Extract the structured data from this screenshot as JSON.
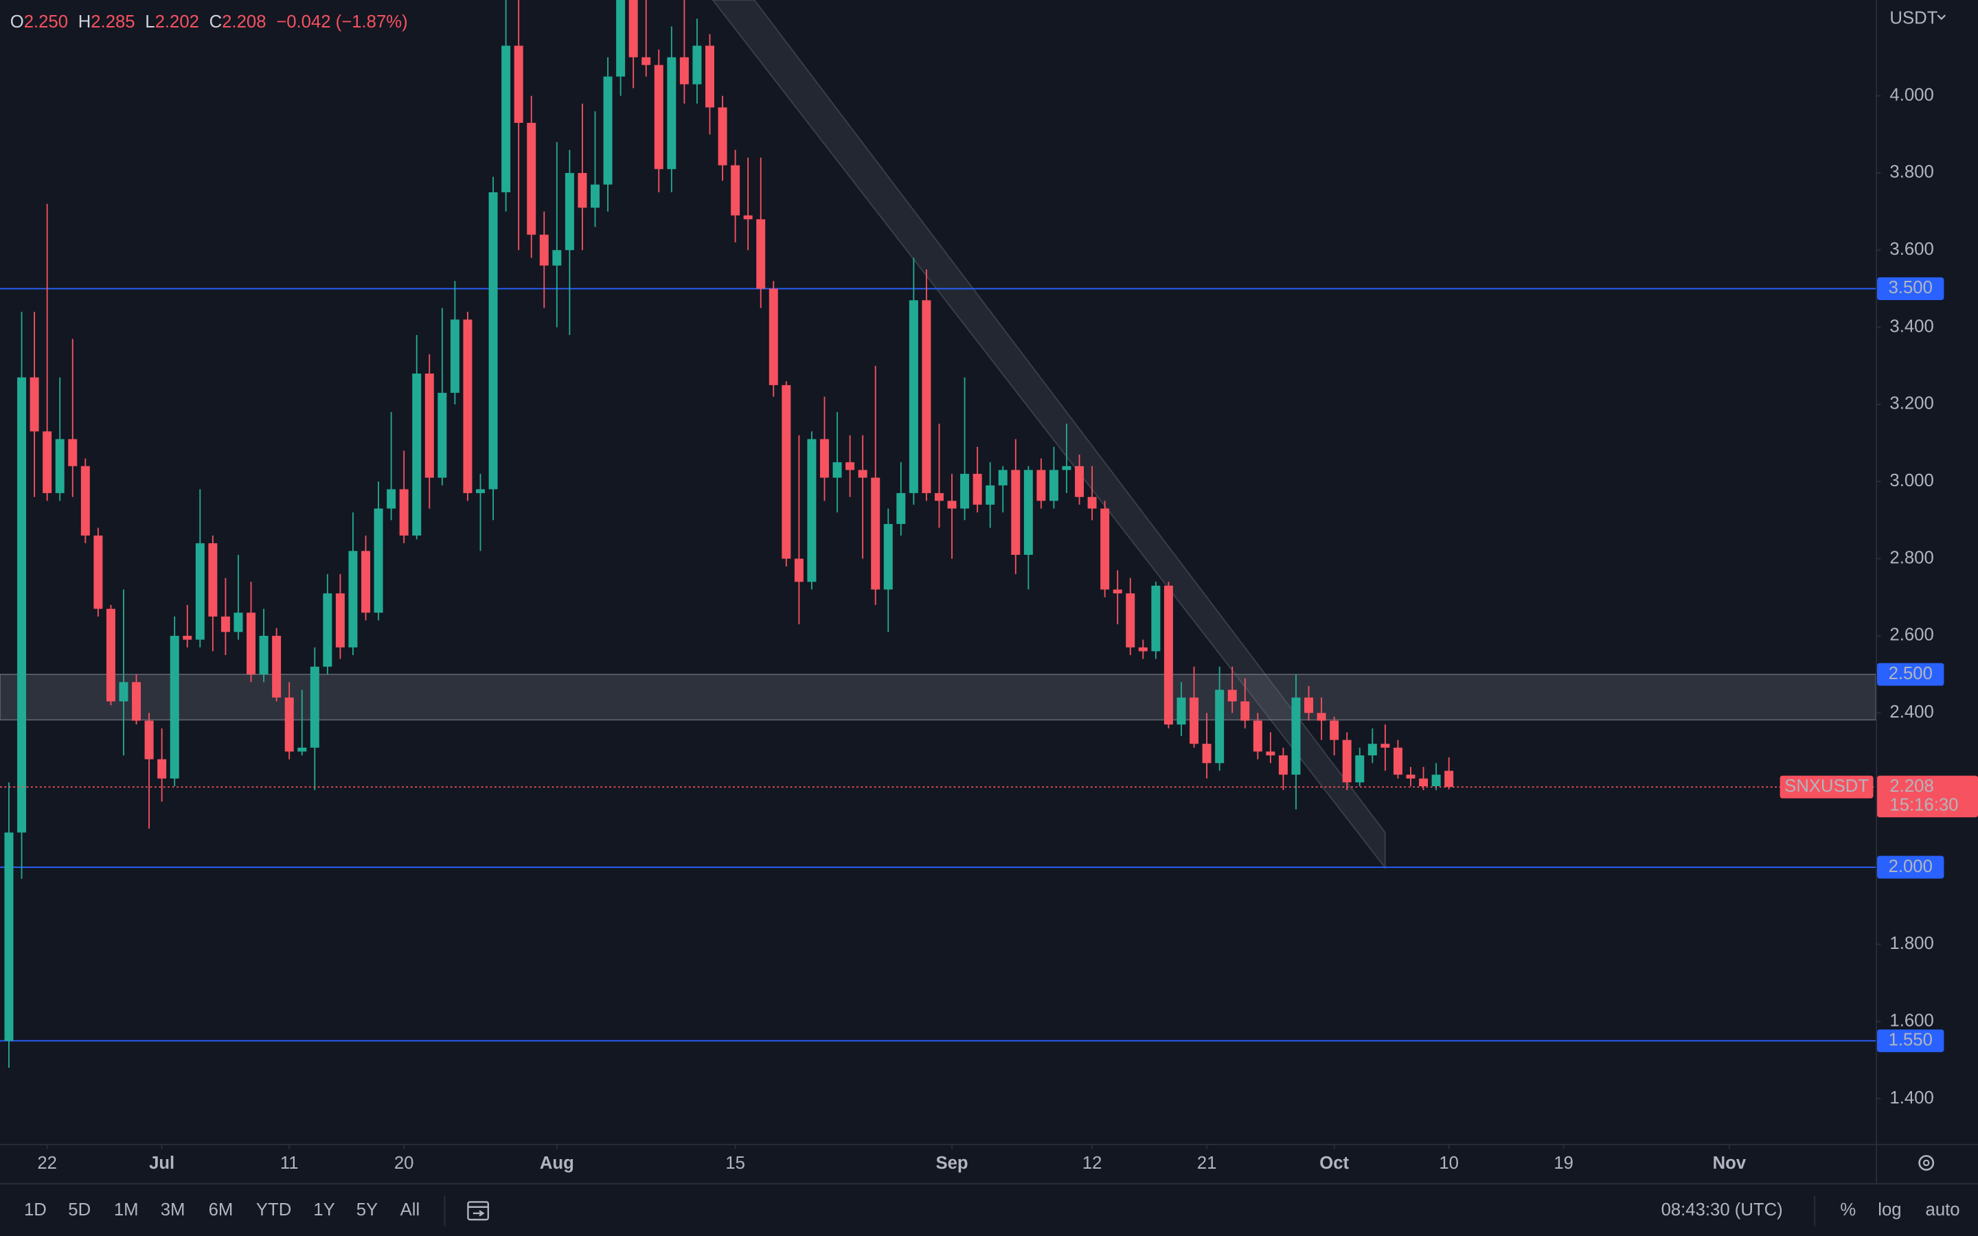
{
  "chart_data": {
    "type": "candlestick",
    "symbol": "SNXUSDT",
    "currency": "USDT",
    "up_color": "#22ab94",
    "down_color": "#f7525f",
    "level_color": "#2962ff",
    "legend": {
      "items": [
        {
          "key": "O",
          "value": "2.250"
        },
        {
          "key": "H",
          "value": "2.285"
        },
        {
          "key": "L",
          "value": "2.202"
        },
        {
          "key": "C",
          "value": "2.208"
        }
      ],
      "change": "−0.042 (−1.87%)"
    },
    "x": [
      0,
      1,
      2,
      3,
      4,
      5,
      6,
      7,
      8,
      9,
      10,
      11,
      12,
      13,
      14,
      15,
      16,
      17,
      18,
      19,
      20,
      21,
      22,
      23,
      24,
      25,
      26,
      27,
      28,
      29,
      30,
      31,
      32,
      33,
      34,
      35,
      36,
      37,
      38,
      39,
      40,
      41,
      42,
      43,
      44,
      45,
      46,
      47,
      48,
      49,
      50,
      51,
      52,
      53,
      54,
      55,
      56,
      57,
      58,
      59,
      60,
      61,
      62,
      63,
      64,
      65,
      66,
      67,
      68,
      69,
      70,
      71,
      72,
      73,
      74,
      75,
      76,
      77,
      78,
      79,
      80,
      81,
      82,
      83,
      84,
      85,
      86,
      87,
      88,
      89,
      90,
      91,
      92,
      93,
      94,
      95,
      96,
      97,
      98,
      99,
      100,
      101,
      102,
      103,
      104,
      105,
      106,
      107,
      108,
      109,
      110,
      111,
      112,
      113
    ],
    "ohlc": [
      [
        1.55,
        2.22,
        1.48,
        2.09
      ],
      [
        2.09,
        3.44,
        1.97,
        3.27
      ],
      [
        3.27,
        3.44,
        2.96,
        3.13
      ],
      [
        3.13,
        3.72,
        2.95,
        2.97
      ],
      [
        2.97,
        3.27,
        2.95,
        3.11
      ],
      [
        3.11,
        3.37,
        2.96,
        3.04
      ],
      [
        3.04,
        3.06,
        2.84,
        2.86
      ],
      [
        2.86,
        2.88,
        2.65,
        2.67
      ],
      [
        2.67,
        2.68,
        2.42,
        2.43
      ],
      [
        2.43,
        2.72,
        2.29,
        2.48
      ],
      [
        2.48,
        2.5,
        2.37,
        2.38
      ],
      [
        2.38,
        2.4,
        2.1,
        2.28
      ],
      [
        2.28,
        2.36,
        2.17,
        2.23
      ],
      [
        2.23,
        2.65,
        2.21,
        2.6
      ],
      [
        2.6,
        2.68,
        2.57,
        2.59
      ],
      [
        2.59,
        2.98,
        2.57,
        2.84
      ],
      [
        2.84,
        2.86,
        2.56,
        2.65
      ],
      [
        2.65,
        2.75,
        2.55,
        2.61
      ],
      [
        2.61,
        2.81,
        2.59,
        2.66
      ],
      [
        2.66,
        2.74,
        2.48,
        2.5
      ],
      [
        2.5,
        2.67,
        2.48,
        2.6
      ],
      [
        2.6,
        2.62,
        2.43,
        2.44
      ],
      [
        2.44,
        2.48,
        2.28,
        2.3
      ],
      [
        2.3,
        2.46,
        2.29,
        2.31
      ],
      [
        2.31,
        2.57,
        2.2,
        2.52
      ],
      [
        2.52,
        2.76,
        2.5,
        2.71
      ],
      [
        2.71,
        2.76,
        2.54,
        2.57
      ],
      [
        2.57,
        2.92,
        2.55,
        2.82
      ],
      [
        2.82,
        2.86,
        2.64,
        2.66
      ],
      [
        2.66,
        3.0,
        2.64,
        2.93
      ],
      [
        2.93,
        3.18,
        2.9,
        2.98
      ],
      [
        2.98,
        3.08,
        2.84,
        2.86
      ],
      [
        2.86,
        3.38,
        2.85,
        3.28
      ],
      [
        3.28,
        3.33,
        2.93,
        3.01
      ],
      [
        3.01,
        3.45,
        2.99,
        3.23
      ],
      [
        3.23,
        3.52,
        3.2,
        3.42
      ],
      [
        3.42,
        3.44,
        2.95,
        2.97
      ],
      [
        2.97,
        3.02,
        2.82,
        2.98
      ],
      [
        2.98,
        3.79,
        2.9,
        3.75
      ],
      [
        3.75,
        4.28,
        3.7,
        4.13
      ],
      [
        4.13,
        4.28,
        3.6,
        3.93
      ],
      [
        3.93,
        4.0,
        3.58,
        3.64
      ],
      [
        3.64,
        3.7,
        3.45,
        3.56
      ],
      [
        3.56,
        3.88,
        3.4,
        3.6
      ],
      [
        3.6,
        3.86,
        3.38,
        3.8
      ],
      [
        3.8,
        3.98,
        3.6,
        3.71
      ],
      [
        3.71,
        3.96,
        3.66,
        3.77
      ],
      [
        3.77,
        4.1,
        3.7,
        4.05
      ],
      [
        4.05,
        4.32,
        4.0,
        4.25
      ],
      [
        4.25,
        4.3,
        4.02,
        4.1
      ],
      [
        4.1,
        4.25,
        4.05,
        4.08
      ],
      [
        4.08,
        4.12,
        3.75,
        3.81
      ],
      [
        3.81,
        4.18,
        3.75,
        4.1
      ],
      [
        4.1,
        4.28,
        3.98,
        4.03
      ],
      [
        4.03,
        4.2,
        3.98,
        4.13
      ],
      [
        4.13,
        4.16,
        3.9,
        3.97
      ],
      [
        3.97,
        4.0,
        3.78,
        3.82
      ],
      [
        3.82,
        3.86,
        3.62,
        3.69
      ],
      [
        3.69,
        3.84,
        3.6,
        3.68
      ],
      [
        3.68,
        3.84,
        3.45,
        3.5
      ],
      [
        3.5,
        3.52,
        3.22,
        3.25
      ],
      [
        3.25,
        3.26,
        2.78,
        2.8
      ],
      [
        2.8,
        3.12,
        2.63,
        2.74
      ],
      [
        2.74,
        3.13,
        2.72,
        3.11
      ],
      [
        3.11,
        3.22,
        2.95,
        3.01
      ],
      [
        3.01,
        3.18,
        2.92,
        3.05
      ],
      [
        3.05,
        3.12,
        2.96,
        3.03
      ],
      [
        3.03,
        3.12,
        2.8,
        3.01
      ],
      [
        3.01,
        3.3,
        2.68,
        2.72
      ],
      [
        2.72,
        2.93,
        2.61,
        2.89
      ],
      [
        2.89,
        3.05,
        2.86,
        2.97
      ],
      [
        2.97,
        3.58,
        2.94,
        3.47
      ],
      [
        3.47,
        3.55,
        2.95,
        2.97
      ],
      [
        2.97,
        3.15,
        2.88,
        2.95
      ],
      [
        2.95,
        3.02,
        2.8,
        2.93
      ],
      [
        2.93,
        3.27,
        2.9,
        3.02
      ],
      [
        3.02,
        3.09,
        2.92,
        2.94
      ],
      [
        2.94,
        3.05,
        2.88,
        2.99
      ],
      [
        2.99,
        3.04,
        2.92,
        3.03
      ],
      [
        3.03,
        3.11,
        2.76,
        2.81
      ],
      [
        2.81,
        3.04,
        2.72,
        3.03
      ],
      [
        3.03,
        3.06,
        2.93,
        2.95
      ],
      [
        2.95,
        3.09,
        2.93,
        3.03
      ],
      [
        3.03,
        3.15,
        2.97,
        3.04
      ],
      [
        3.04,
        3.07,
        2.94,
        2.96
      ],
      [
        2.96,
        3.04,
        2.9,
        2.93
      ],
      [
        2.93,
        2.95,
        2.7,
        2.72
      ],
      [
        2.72,
        2.77,
        2.63,
        2.71
      ],
      [
        2.71,
        2.75,
        2.55,
        2.57
      ],
      [
        2.57,
        2.59,
        2.54,
        2.56
      ],
      [
        2.56,
        2.74,
        2.54,
        2.73
      ],
      [
        2.73,
        2.74,
        2.36,
        2.37
      ],
      [
        2.37,
        2.48,
        2.34,
        2.44
      ],
      [
        2.44,
        2.52,
        2.31,
        2.32
      ],
      [
        2.32,
        2.4,
        2.23,
        2.27
      ],
      [
        2.27,
        2.52,
        2.25,
        2.46
      ],
      [
        2.46,
        2.52,
        2.4,
        2.43
      ],
      [
        2.43,
        2.49,
        2.36,
        2.38
      ],
      [
        2.38,
        2.4,
        2.28,
        2.3
      ],
      [
        2.3,
        2.35,
        2.27,
        2.29
      ],
      [
        2.29,
        2.31,
        2.2,
        2.24
      ],
      [
        2.24,
        2.5,
        2.15,
        2.44
      ],
      [
        2.44,
        2.47,
        2.38,
        2.4
      ],
      [
        2.4,
        2.44,
        2.33,
        2.38
      ],
      [
        2.38,
        2.39,
        2.29,
        2.33
      ],
      [
        2.33,
        2.35,
        2.2,
        2.22
      ],
      [
        2.22,
        2.31,
        2.21,
        2.29
      ],
      [
        2.29,
        2.36,
        2.27,
        2.32
      ],
      [
        2.32,
        2.37,
        2.25,
        2.31
      ],
      [
        2.31,
        2.33,
        2.23,
        2.24
      ],
      [
        2.24,
        2.26,
        2.21,
        2.23
      ],
      [
        2.23,
        2.26,
        2.2,
        2.21
      ],
      [
        2.21,
        2.27,
        2.2,
        2.24
      ],
      [
        2.25,
        2.285,
        2.202,
        2.208
      ]
    ],
    "xlim": [
      -0.7,
      146.5
    ],
    "xticks": [
      {
        "value": 3,
        "label": "22"
      },
      {
        "value": 12,
        "label": "Jul"
      },
      {
        "value": 22,
        "label": "11"
      },
      {
        "value": 31,
        "label": "20"
      },
      {
        "value": 43,
        "label": "Aug"
      },
      {
        "value": 57,
        "label": "15"
      },
      {
        "value": 74,
        "label": "Sep"
      },
      {
        "value": 85,
        "label": "12"
      },
      {
        "value": 94,
        "label": "21"
      },
      {
        "value": 104,
        "label": "Oct"
      },
      {
        "value": 113,
        "label": "10"
      },
      {
        "value": 122,
        "label": "19"
      },
      {
        "value": 135,
        "label": "Nov"
      }
    ],
    "ylim": [
      1.2826,
      4.2485
    ],
    "yticks": [
      {
        "value": 1.4,
        "label": "1.400"
      },
      {
        "value": 1.6,
        "label": "1.600"
      },
      {
        "value": 1.8,
        "label": "1.800"
      },
      {
        "value": 2.4,
        "label": "2.400"
      },
      {
        "value": 2.6,
        "label": "2.600"
      },
      {
        "value": 2.8,
        "label": "2.800"
      },
      {
        "value": 3.0,
        "label": "3.000"
      },
      {
        "value": 3.2,
        "label": "3.200"
      },
      {
        "value": 3.4,
        "label": "3.400"
      },
      {
        "value": 3.6,
        "label": "3.600"
      },
      {
        "value": 3.8,
        "label": "3.800"
      },
      {
        "value": 4.0,
        "label": "4.000"
      }
    ],
    "levels": [
      {
        "value": 3.5,
        "label": "3.500"
      },
      {
        "value": 2.0,
        "label": "2.000"
      },
      {
        "value": 1.55,
        "label": "1.550"
      }
    ],
    "zone": {
      "top": 2.5,
      "bottom": 2.382,
      "label": "2.500"
    },
    "last": {
      "value": 2.208,
      "label": "2.208",
      "countdown": "15:16:30"
    }
  },
  "toolbar": {
    "intervals": [
      "1D",
      "5D",
      "1M",
      "3M",
      "6M",
      "YTD",
      "1Y",
      "5Y",
      "All"
    ],
    "clock": "08:43:30 (UTC)",
    "options": [
      "%",
      "log",
      "auto"
    ]
  }
}
